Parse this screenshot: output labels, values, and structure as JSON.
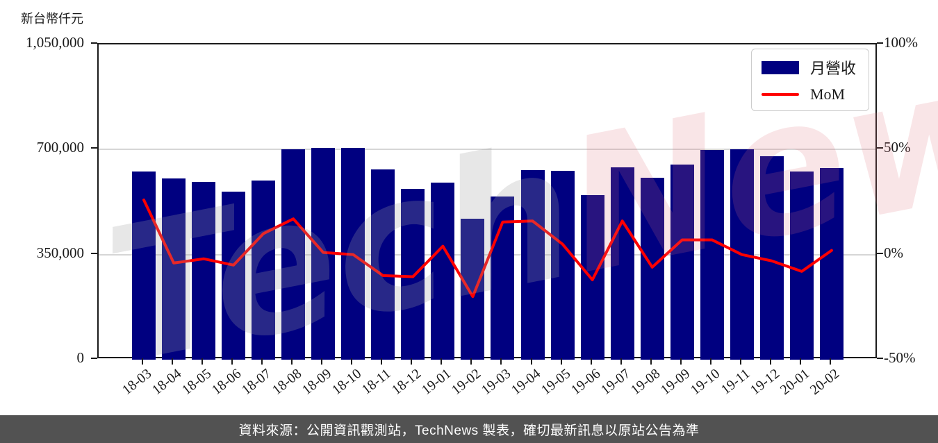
{
  "page": {
    "y_axis_title": "新台幣仟元",
    "caption": "資料來源：公開資訊觀測站，TechNews 製表，確切最新訊息以原站公告為準",
    "watermark": {
      "part1": "Tech",
      "part2": "News"
    }
  },
  "colors": {
    "bar": "#000080",
    "line": "#ff0000",
    "grid": "#d6d6d6",
    "axis": "#1a1a1a",
    "caption_bg": "#525252",
    "caption_text": "#ffffff",
    "legend_border": "#cccccc"
  },
  "legend": {
    "position": "top-right",
    "items": [
      {
        "label": "月營收",
        "type": "bar"
      },
      {
        "label": "MoM",
        "type": "line"
      }
    ]
  },
  "chart_data": {
    "type": "combo",
    "title": "",
    "categories": [
      "18-03",
      "18-04",
      "18-05",
      "18-06",
      "18-07",
      "18-08",
      "18-09",
      "18-10",
      "18-11",
      "18-12",
      "19-01",
      "19-02",
      "19-03",
      "19-04",
      "19-05",
      "19-06",
      "19-07",
      "19-08",
      "19-09",
      "19-10",
      "19-11",
      "19-12",
      "20-01",
      "20-02"
    ],
    "series": [
      {
        "name": "月營收",
        "type": "bar",
        "axis": "left",
        "unit": "新台幣仟元",
        "values": [
          627000,
          603000,
          591000,
          560000,
          597000,
          700000,
          706000,
          705000,
          633000,
          568000,
          590000,
          470000,
          543000,
          631000,
          629000,
          549000,
          640000,
          605000,
          650000,
          698000,
          700000,
          678000,
          627000,
          639000
        ]
      },
      {
        "name": "MoM",
        "type": "line",
        "axis": "right",
        "unit": "%",
        "values": [
          26,
          -4,
          -2,
          -5,
          10,
          17,
          1,
          0,
          -10,
          -10.5,
          4,
          -20,
          15.5,
          16,
          5,
          -12,
          16,
          -6,
          7,
          7,
          0,
          -3,
          -8,
          2
        ]
      }
    ],
    "left_axis": {
      "title": "新台幣仟元",
      "min": 0,
      "max": 1050000,
      "ticks": [
        {
          "label": "1,050,000",
          "value": 1050000
        },
        {
          "label": "700,000",
          "value": 700000
        },
        {
          "label": "350,000",
          "value": 350000
        },
        {
          "label": "0",
          "value": 0
        }
      ]
    },
    "right_axis": {
      "min": -50,
      "max": 100,
      "ticks": [
        {
          "label": "100%",
          "value": 100
        },
        {
          "label": "50%",
          "value": 50
        },
        {
          "label": "0%",
          "value": 0
        },
        {
          "label": "-50%",
          "value": -50
        }
      ]
    },
    "grid_values": [
      700000,
      350000
    ],
    "grid": true,
    "legend_position": "top-right"
  }
}
